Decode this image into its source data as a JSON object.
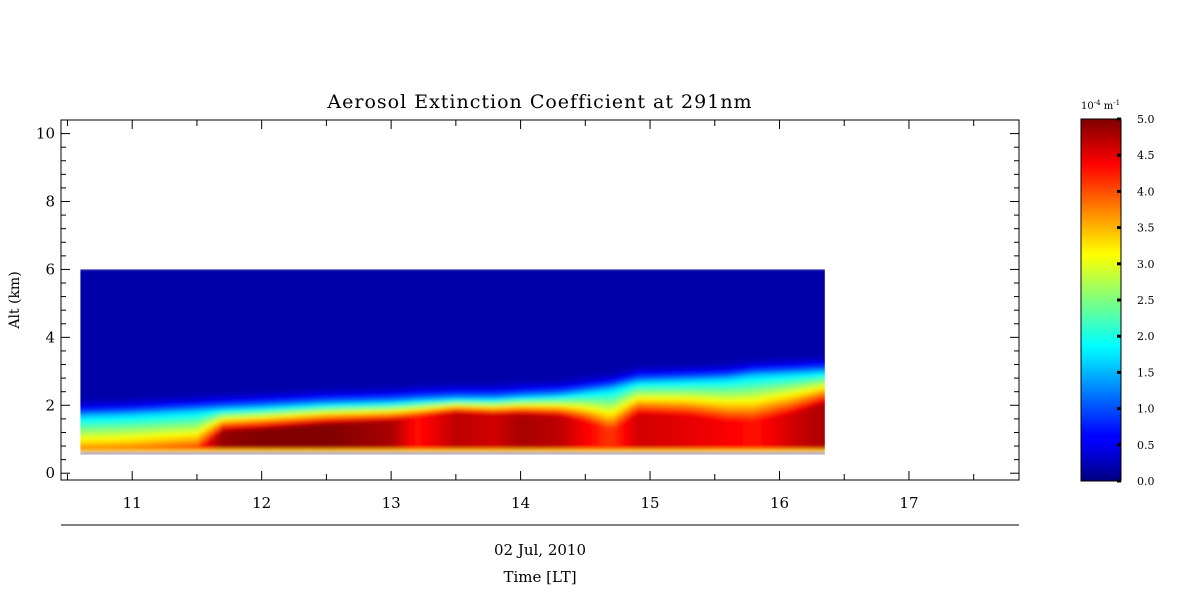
{
  "chart_data": {
    "type": "heatmap",
    "title": "Aerosol Extinction Coefficient at 291nm",
    "ylabel": "Alt (km)",
    "xlabel": "Time [LT]",
    "date_label": "02 Jul, 2010",
    "xlim": [
      10.45,
      17.85
    ],
    "ylim": [
      -0.2,
      10.4
    ],
    "x_ticks": [
      "11",
      "12",
      "13",
      "14",
      "15",
      "16",
      "17"
    ],
    "y_ticks": [
      "0",
      "2",
      "4",
      "6",
      "8",
      "10"
    ],
    "data_extent": {
      "x": [
        10.6,
        16.35
      ],
      "y": [
        0.55,
        6.0
      ]
    },
    "colorbar": {
      "unit": "10",
      "unit_exp": "-4",
      "unit_suffix": "m",
      "unit_suffix_exp": "-1",
      "range": [
        0.0,
        5.0
      ],
      "ticks": [
        "0.0",
        "0.5",
        "1.0",
        "1.5",
        "2.0",
        "2.5",
        "3.0",
        "3.5",
        "4.0",
        "4.5",
        "5.0"
      ],
      "colormap": "jet"
    },
    "profiles": [
      {
        "t": 10.6,
        "top": 1.7,
        "core": 0.6,
        "bulk": 4.0
      },
      {
        "t": 11.0,
        "top": 1.75,
        "core": 0.6,
        "bulk": 4.1
      },
      {
        "t": 11.5,
        "top": 1.85,
        "core": 0.7,
        "bulk": 4.2
      },
      {
        "t": 11.7,
        "top": 1.9,
        "core": 1.25,
        "bulk": 4.9
      },
      {
        "t": 12.0,
        "top": 1.95,
        "core": 1.3,
        "bulk": 5.0
      },
      {
        "t": 12.5,
        "top": 2.05,
        "core": 1.45,
        "bulk": 5.0
      },
      {
        "t": 13.0,
        "top": 2.1,
        "core": 1.55,
        "bulk": 4.8
      },
      {
        "t": 13.2,
        "top": 2.15,
        "core": 1.7,
        "bulk": 4.3
      },
      {
        "t": 13.5,
        "top": 2.2,
        "core": 1.8,
        "bulk": 4.7
      },
      {
        "t": 13.8,
        "top": 2.2,
        "core": 1.75,
        "bulk": 4.6
      },
      {
        "t": 14.0,
        "top": 2.25,
        "core": 1.75,
        "bulk": 4.8
      },
      {
        "t": 14.3,
        "top": 2.3,
        "core": 1.7,
        "bulk": 4.7
      },
      {
        "t": 14.5,
        "top": 2.4,
        "core": 1.55,
        "bulk": 4.4
      },
      {
        "t": 14.7,
        "top": 2.5,
        "core": 1.3,
        "bulk": 4.1
      },
      {
        "t": 14.9,
        "top": 2.7,
        "core": 1.75,
        "bulk": 4.6
      },
      {
        "t": 15.3,
        "top": 2.75,
        "core": 1.7,
        "bulk": 4.5
      },
      {
        "t": 15.6,
        "top": 2.8,
        "core": 1.55,
        "bulk": 4.4
      },
      {
        "t": 15.8,
        "top": 2.9,
        "core": 1.55,
        "bulk": 4.3
      },
      {
        "t": 16.1,
        "top": 2.95,
        "core": 1.75,
        "bulk": 4.6
      },
      {
        "t": 16.35,
        "top": 3.0,
        "core": 2.05,
        "bulk": 4.8
      }
    ]
  }
}
